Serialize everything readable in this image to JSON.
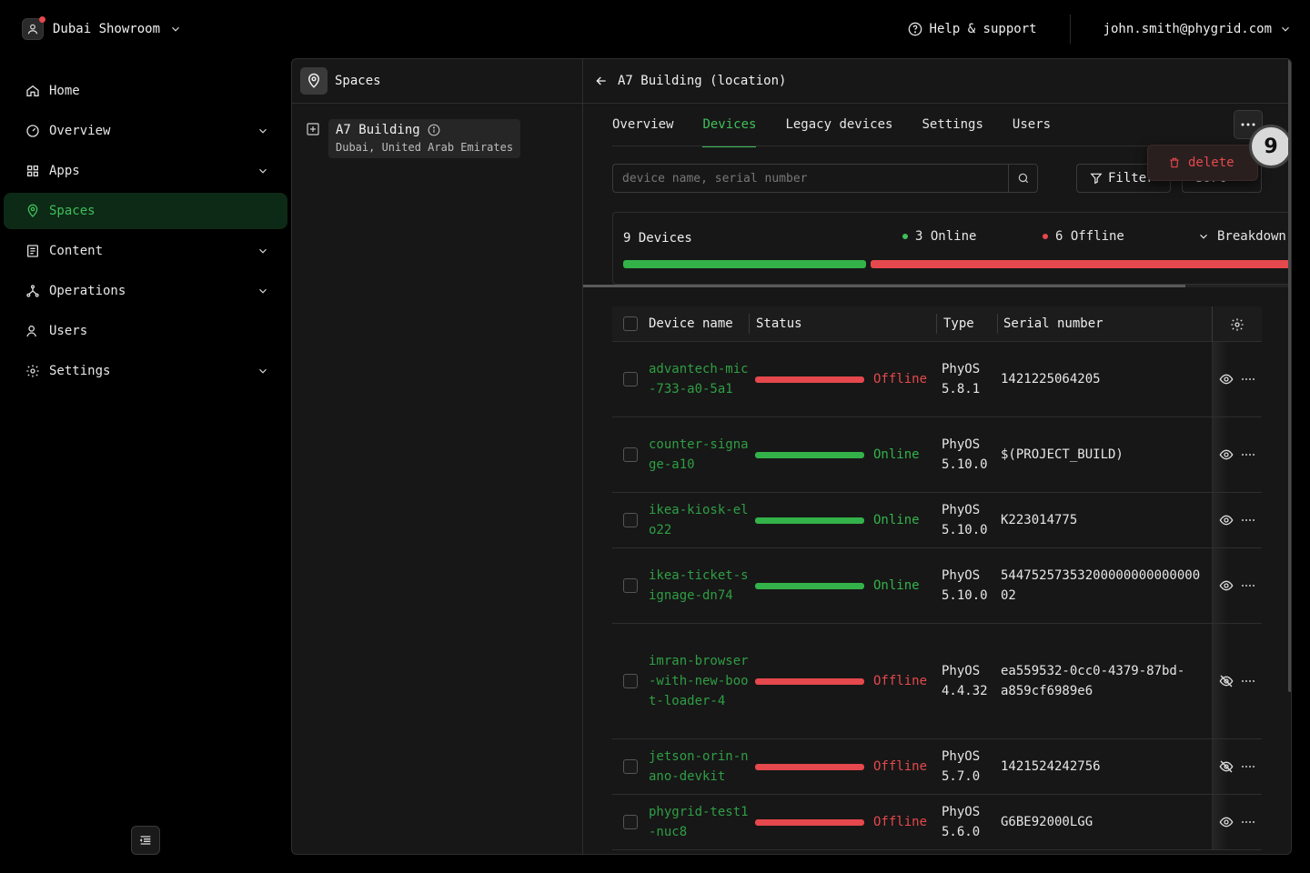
{
  "workspace": {
    "name": "Dubai Showroom"
  },
  "header": {
    "help": "Help & support",
    "user_email": "john.smith@phygrid.com"
  },
  "sidebar": {
    "items": [
      {
        "label": "Home",
        "icon": "home-icon",
        "expandable": false,
        "active": false
      },
      {
        "label": "Overview",
        "icon": "dashboard-icon",
        "expandable": true,
        "active": false
      },
      {
        "label": "Apps",
        "icon": "apps-grid-icon",
        "expandable": true,
        "active": false
      },
      {
        "label": "Spaces",
        "icon": "map-pin-icon",
        "expandable": false,
        "active": true
      },
      {
        "label": "Content",
        "icon": "content-icon",
        "expandable": true,
        "active": false
      },
      {
        "label": "Operations",
        "icon": "network-icon",
        "expandable": true,
        "active": false
      },
      {
        "label": "Users",
        "icon": "users-icon",
        "expandable": false,
        "active": false
      },
      {
        "label": "Settings",
        "icon": "gear-icon",
        "expandable": true,
        "active": false
      }
    ]
  },
  "spaces_panel": {
    "title": "Spaces",
    "node": {
      "name": "A7 Building",
      "location": "Dubai, United Arab Emirates"
    }
  },
  "detail": {
    "title": "A7 Building (location)",
    "tabs": [
      "Overview",
      "Devices",
      "Legacy devices",
      "Settings",
      "Users"
    ],
    "active_tab": "Devices",
    "search_placeholder": "device name, serial number",
    "filter_label": "Filter",
    "sort_label": "Sort",
    "menu": {
      "delete_label": "delete"
    },
    "step_badge": "9",
    "summary": {
      "total": "9 Devices",
      "online": "3 Online",
      "offline": "6 Offline",
      "breakdown": "Breakdown",
      "online_count": 3,
      "offline_count": 6
    },
    "table": {
      "columns": [
        "Device name",
        "Status",
        "Type",
        "Serial number"
      ],
      "rows": [
        {
          "name": "advantech-mic-733-a0-5a1",
          "status": "Offline",
          "type": "PhyOS 5.8.1",
          "serial": "1421225064205",
          "visible": true
        },
        {
          "name": "counter-signage-a10",
          "status": "Online",
          "type": "PhyOS 5.10.0",
          "serial": "$(PROJECT_BUILD)",
          "visible": true
        },
        {
          "name": "ikea-kiosk-elo22",
          "status": "Online",
          "type": "PhyOS 5.10.0",
          "serial": "K223014775",
          "visible": true
        },
        {
          "name": "ikea-ticket-signage-dn74",
          "status": "Online",
          "type": "PhyOS 5.10.0",
          "serial": "5447525735320000000000000002",
          "visible": true
        },
        {
          "name": "imran-browser-with-new-boot-loader-4",
          "status": "Offline",
          "type": "PhyOS 4.4.32",
          "serial": "ea559532-0cc0-4379-87bd-a859cf6989e6",
          "visible": false
        },
        {
          "name": "jetson-orin-nano-devkit",
          "status": "Offline",
          "type": "PhyOS 5.7.0",
          "serial": "1421524242756",
          "visible": false
        },
        {
          "name": "phygrid-test1-nuc8",
          "status": "Offline",
          "type": "PhyOS 5.6.0",
          "serial": "G6BE92000LGG",
          "visible": true
        }
      ]
    }
  },
  "colors": {
    "accent": "#3fbf5a",
    "online": "#33b24a",
    "offline": "#e5484d",
    "background": "#000000",
    "panel": "#171717"
  }
}
